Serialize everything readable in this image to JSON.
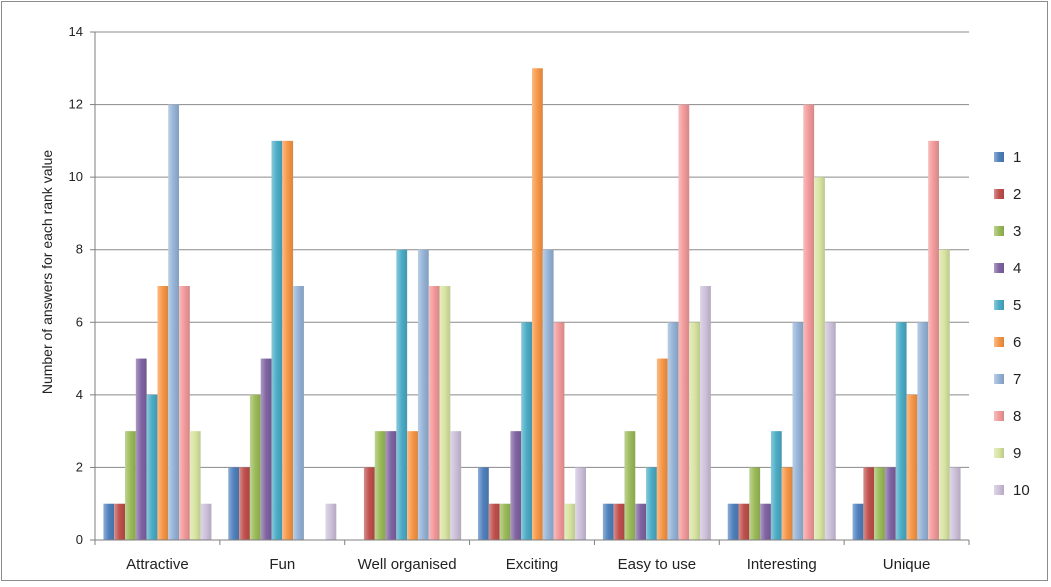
{
  "chart_data": {
    "type": "bar",
    "categories": [
      "Attractive",
      "Fun",
      "Well organised",
      "Exciting",
      "Easy to use",
      "Interesting",
      "Unique"
    ],
    "ylabel": "Number of answers for each rank value",
    "xlabel": "",
    "title": "",
    "ylim": [
      0,
      14
    ],
    "yticks": [
      0,
      2,
      4,
      6,
      8,
      10,
      12,
      14
    ],
    "grid": true,
    "legend_position": "right",
    "series": [
      {
        "name": "1",
        "color": "#4f81bd",
        "values": [
          1,
          2,
          0,
          2,
          1,
          1,
          1
        ]
      },
      {
        "name": "2",
        "color": "#c0504d",
        "values": [
          1,
          2,
          2,
          1,
          1,
          1,
          2
        ]
      },
      {
        "name": "3",
        "color": "#9bbb59",
        "values": [
          3,
          4,
          3,
          1,
          3,
          2,
          2
        ]
      },
      {
        "name": "4",
        "color": "#8064a2",
        "values": [
          5,
          5,
          3,
          3,
          1,
          1,
          2
        ]
      },
      {
        "name": "5",
        "color": "#4bacc6",
        "values": [
          4,
          11,
          8,
          6,
          2,
          3,
          6
        ]
      },
      {
        "name": "6",
        "color": "#f79646",
        "values": [
          7,
          11,
          3,
          13,
          5,
          2,
          4
        ]
      },
      {
        "name": "7",
        "color": "#95b3d7",
        "values": [
          12,
          7,
          8,
          8,
          6,
          6,
          6
        ]
      },
      {
        "name": "8",
        "color": "#f2999a",
        "values": [
          7,
          0,
          7,
          6,
          12,
          12,
          11
        ]
      },
      {
        "name": "9",
        "color": "#d7e4a1",
        "values": [
          3,
          0,
          7,
          1,
          6,
          10,
          8
        ]
      },
      {
        "name": "10",
        "color": "#ccc0da",
        "values": [
          1,
          1,
          3,
          2,
          7,
          6,
          2
        ]
      }
    ]
  }
}
